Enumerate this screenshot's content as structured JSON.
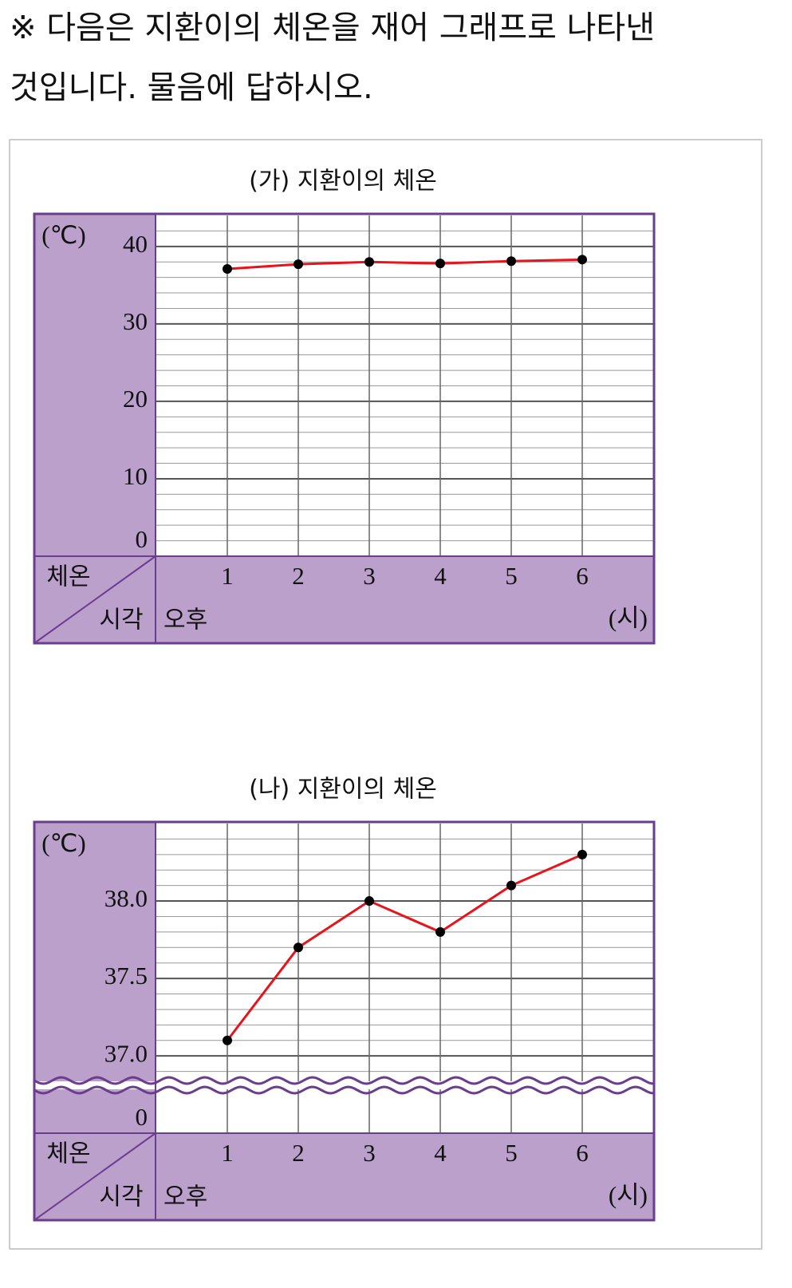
{
  "question_lines": [
    "※ 다음은 지환이의 체온을 재어 그래프로 나타낸",
    "것입니다. 물음에 답하시오."
  ],
  "chart_data": [
    {
      "type": "line",
      "title": "(가) 지환이의 체온",
      "y_unit": "(℃)",
      "value_header": "체온",
      "category_header": "시각",
      "x_prefix": "오후",
      "x_unit": "(시)",
      "categories": [
        "1",
        "2",
        "3",
        "4",
        "5",
        "6"
      ],
      "values": [
        37.1,
        37.7,
        38.0,
        37.8,
        38.1,
        38.3
      ],
      "color": "#e8141c",
      "ylim": [
        0,
        44
      ],
      "yticks": [
        0,
        10,
        20,
        30,
        40
      ],
      "minor_step": 2,
      "grid": true
    },
    {
      "type": "line",
      "title": "(나) 지환이의 체온",
      "y_unit": "(℃)",
      "value_header": "체온",
      "category_header": "시각",
      "x_prefix": "오후",
      "x_unit": "(시)",
      "categories": [
        "1",
        "2",
        "3",
        "4",
        "5",
        "6"
      ],
      "values": [
        37.1,
        37.7,
        38.0,
        37.8,
        38.1,
        38.3
      ],
      "color": "#e8141c",
      "ylim": [
        36.8,
        38.5
      ],
      "yticks": [
        {
          "value": 37,
          "label": "37.0"
        },
        {
          "value": 37.5,
          "label": "37.5"
        },
        {
          "value": 38,
          "label": "38.0"
        }
      ],
      "minor_step": 0.1,
      "grid": true,
      "axis_break": {
        "tick": 0
      }
    }
  ]
}
